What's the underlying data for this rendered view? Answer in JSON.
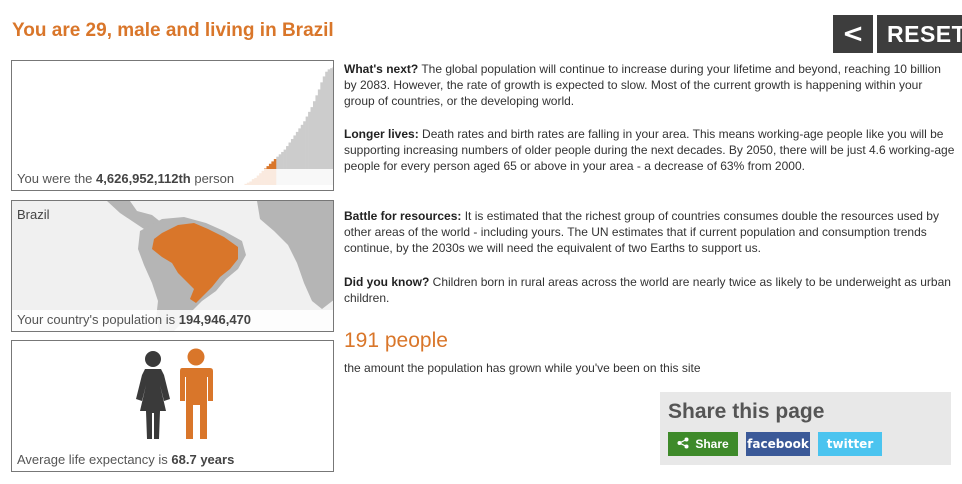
{
  "headline": "You are 29, male and living in Brazil",
  "nav": {
    "back_label": "<",
    "reset_label": "RESET"
  },
  "birth_panel": {
    "caption_prefix": "You were the ",
    "rank": "4,626,952,112th",
    "caption_suffix": " person",
    "bar_values": [
      0.0,
      0.0,
      0.0,
      0.0,
      0.0,
      0.0,
      0.0,
      0.0,
      0.0,
      0.0,
      0.0,
      0.0,
      0.0,
      0.0,
      0.0,
      0.0,
      0.0,
      0.0,
      0.0,
      0.0,
      0.0,
      0.0,
      0.0,
      0.0,
      0.0,
      0.0,
      0.0,
      0.0,
      0.0,
      0.0,
      0.0,
      0.0,
      0.0,
      0.0,
      0.0,
      0.0,
      0.0,
      0.0,
      0.0,
      0.0,
      0.0,
      0.0,
      0.0,
      0.0,
      0.0,
      0.0,
      0.0,
      0.0,
      0.0,
      0.0,
      0.0,
      0.0,
      0.0,
      0.0,
      0.0,
      0.0,
      0.0,
      0.0,
      0.0,
      0.0,
      0.0,
      0.0,
      0.0,
      0.0,
      0.0,
      0.0,
      0.0,
      0.0,
      0.0,
      0.0,
      0.0,
      0.0,
      0.0,
      0.0,
      0.0,
      0.0,
      0.0,
      0.0,
      0.0,
      0.0,
      0.0,
      0.0,
      0.0,
      0.0,
      0.0,
      0.0,
      0.0,
      0.0,
      0.0,
      0.0,
      0.0,
      0.0,
      0.0,
      0.0,
      0.0,
      0.01,
      0.02,
      0.03,
      0.05,
      0.06,
      0.08,
      0.1,
      0.12,
      0.14,
      0.16,
      0.18,
      0.2,
      0.22,
      0.24,
      0.26,
      0.28,
      0.3,
      0.33,
      0.36,
      0.39,
      0.42,
      0.45,
      0.48,
      0.51,
      0.54,
      0.58,
      0.62,
      0.66,
      0.71,
      0.76,
      0.81,
      0.87,
      0.92,
      0.96,
      0.98,
      0.99,
      1.0
    ],
    "highlight_until": 0.82,
    "bar_color": "#d9762a",
    "future_color": "#cccccc"
  },
  "country_panel": {
    "country": "Brazil",
    "caption_prefix": "Your country's population is ",
    "population": "194,946,470",
    "highlight_color": "#d9762a"
  },
  "life_panel": {
    "caption_prefix": "Average life expectancy is ",
    "expectancy": "68.7 years",
    "female_color": "#3a3a3a",
    "male_color": "#d9762a"
  },
  "paragraphs": [
    {
      "heading": "What's next?",
      "text": " The global population will continue to increase during your lifetime and beyond, reaching 10 billion by 2083. However, the rate of growth is expected to slow. Most of the current growth is happening within your group of countries, or the developing world."
    },
    {
      "heading": "Longer lives:",
      "text": " Death rates and birth rates are falling in your area. This means working-age people like you will be supporting increasing numbers of older people during the next decades. By 2050, there will be just 4.6 working-age people for every person aged 65 or above in your area - a decrease of 63% from 2000."
    },
    {
      "heading": "Battle for resources:",
      "text": " It is estimated that the richest group of countries consumes double the resources used by other areas of the world - including yours. The UN estimates that if current population and consumption trends continue, by the 2030s we will need the equivalent of two Earths to support us."
    },
    {
      "heading": "Did you know?",
      "text": " Children born in rural areas across the world are nearly twice as likely to be underweight as urban children."
    }
  ],
  "counter": {
    "value": "191 people",
    "note": "the amount the population has grown while you've been on this site"
  },
  "share": {
    "title": "Share this page",
    "share_label": "Share",
    "facebook_label": "facebook",
    "twitter_label": "twitter",
    "share_color": "#3e8a2a",
    "facebook_color": "#3b5998",
    "twitter_color": "#4bc4ef"
  }
}
